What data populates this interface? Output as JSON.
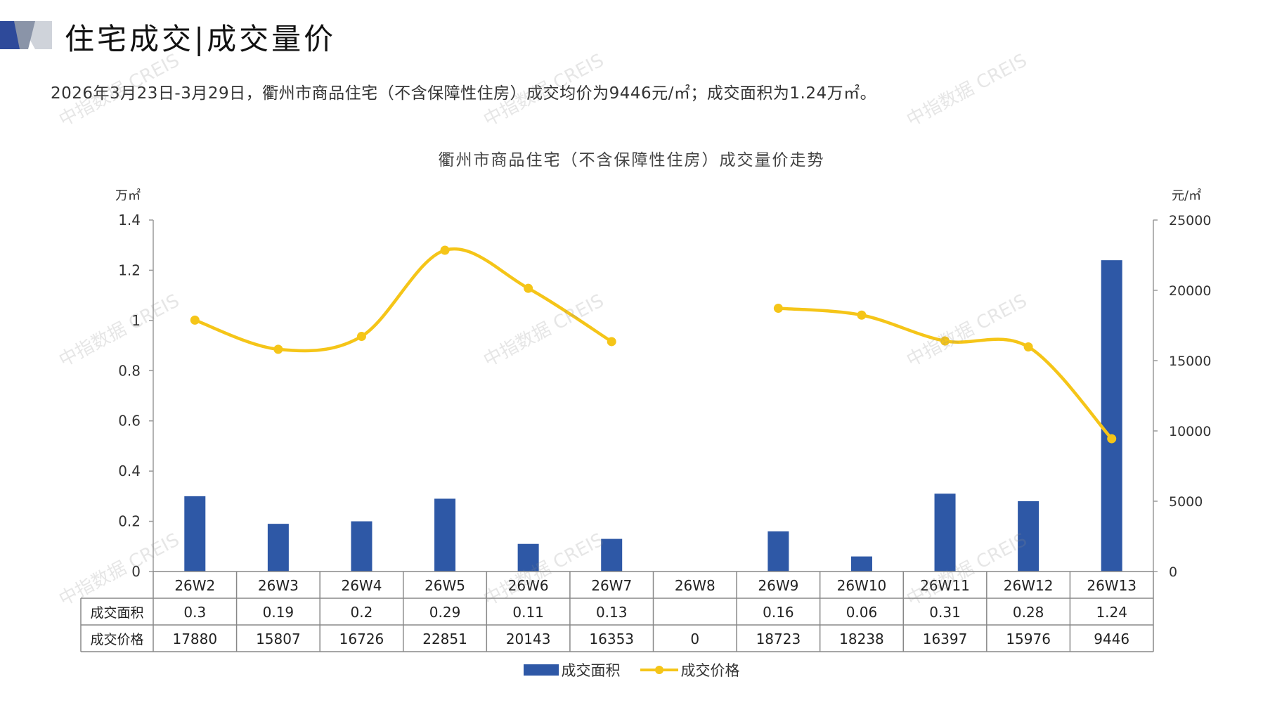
{
  "header": {
    "title": "住宅成交|成交量价",
    "summary": "2026年3月23日-3月29日，衢州市商品住宅（不含保障性住房）成交均价为9446元/㎡；成交面积为1.24万㎡。"
  },
  "watermark_text": "中指数据 CREIS",
  "colors": {
    "bar": "#2E58A6",
    "line": "#F5C518",
    "axis": "#9a9a9a",
    "table_border": "#888888"
  },
  "chart_data": {
    "type": "bar+line",
    "title": "衢州市商品住宅（不含保障性住房）成交量价走势",
    "categories": [
      "26W2",
      "26W3",
      "26W4",
      "26W5",
      "26W6",
      "26W7",
      "26W8",
      "26W9",
      "26W10",
      "26W11",
      "26W12",
      "26W13"
    ],
    "y_left": {
      "unit": "万㎡",
      "lim": [
        0,
        1.4
      ],
      "ticks": [
        0,
        0.2,
        0.4,
        0.6,
        0.8,
        1,
        1.2,
        1.4
      ],
      "tick_labels": [
        "0",
        "0.2",
        "0.4",
        "0.6",
        "0.8",
        "1",
        "1.2",
        "1.4"
      ]
    },
    "y_right": {
      "unit": "元/㎡",
      "lim": [
        0,
        25000
      ],
      "ticks": [
        0,
        5000,
        10000,
        15000,
        20000,
        25000
      ],
      "tick_labels": [
        "0",
        "5000",
        "10000",
        "15000",
        "20000",
        "25000"
      ]
    },
    "series": [
      {
        "name": "成交面积",
        "type": "bar",
        "axis": "left",
        "values": [
          0.3,
          0.19,
          0.2,
          0.29,
          0.11,
          0.13,
          null,
          0.16,
          0.06,
          0.31,
          0.28,
          1.24
        ],
        "display": [
          "0.3",
          "0.19",
          "0.2",
          "0.29",
          "0.11",
          "0.13",
          "",
          "0.16",
          "0.06",
          "0.31",
          "0.28",
          "1.24"
        ]
      },
      {
        "name": "成交价格",
        "type": "line",
        "axis": "right",
        "smooth": true,
        "gap_at_zero": true,
        "values": [
          17880,
          15807,
          16726,
          22851,
          20143,
          16353,
          0,
          18723,
          18238,
          16397,
          15976,
          9446
        ],
        "display": [
          "17880",
          "15807",
          "16726",
          "22851",
          "20143",
          "16353",
          "0",
          "18723",
          "18238",
          "16397",
          "15976",
          "9446"
        ]
      }
    ],
    "legend": {
      "position": "bottom-center"
    },
    "data_table": true,
    "grid": false
  }
}
